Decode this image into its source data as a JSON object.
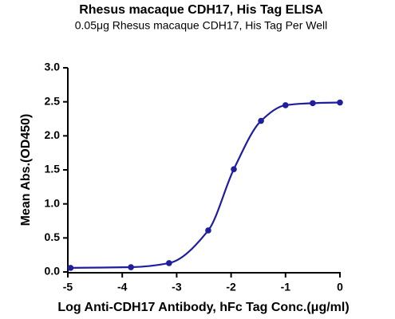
{
  "chart_data": {
    "type": "scatter",
    "title": "Rhesus macaque CDH17, His Tag ELISA",
    "subtitle": "0.05μg Rhesus macaque CDH17, His Tag Per Well",
    "x_label": "Log Anti-CDH17 Antibody, hFc Tag Conc.(μg/ml)",
    "y_label": "Mean Abs.(OD450)",
    "color": "#1f1f9e",
    "x": [
      -4.95,
      -3.84,
      -3.14,
      -2.42,
      -1.95,
      -1.45,
      -1.0,
      -0.5,
      0
    ],
    "values": [
      0.06,
      0.07,
      0.13,
      0.61,
      1.51,
      2.22,
      2.45,
      2.48,
      2.49
    ],
    "xlim": [
      -5,
      0
    ],
    "xticks": [
      -5,
      -4,
      -3,
      -2,
      -1,
      0
    ],
    "ylim": [
      0,
      3
    ],
    "yticks": [
      {
        "value": 0,
        "label": "0.0"
      },
      0.5,
      {
        "value": 1,
        "label": "1.0"
      },
      1.5,
      {
        "value": 2,
        "label": "2.0"
      },
      2.5,
      {
        "value": 3,
        "label": "3.0"
      }
    ]
  }
}
